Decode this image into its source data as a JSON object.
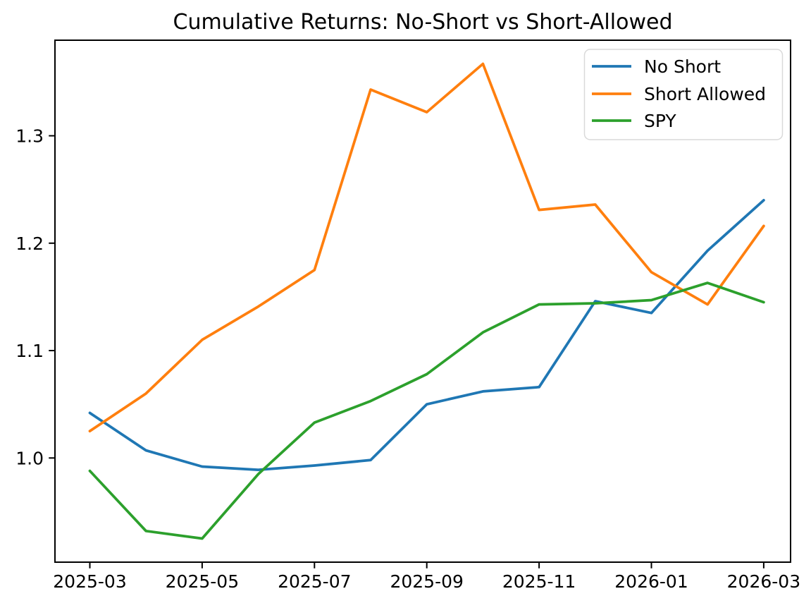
{
  "chart_data": {
    "type": "line",
    "title": "Cumulative Returns: No-Short vs Short-Allowed",
    "xlabel": "",
    "ylabel": "",
    "grid": false,
    "x": [
      "2025-03",
      "2025-04",
      "2025-05",
      "2025-06",
      "2025-07",
      "2025-08",
      "2025-09",
      "2025-10",
      "2025-11",
      "2025-12",
      "2026-01",
      "2026-02",
      "2026-03"
    ],
    "series": [
      {
        "name": "No Short",
        "color": "#1f77b4",
        "values": [
          1.042,
          1.007,
          0.992,
          0.989,
          0.993,
          0.998,
          1.05,
          1.062,
          1.066,
          1.146,
          1.135,
          1.193,
          1.24
        ]
      },
      {
        "name": "Short Allowed",
        "color": "#ff7f0e",
        "values": [
          1.025,
          1.06,
          1.11,
          1.141,
          1.175,
          1.343,
          1.322,
          1.367,
          1.231,
          1.236,
          1.173,
          1.143,
          1.216
        ]
      },
      {
        "name": "SPY",
        "color": "#2ca02c",
        "values": [
          0.988,
          0.932,
          0.925,
          0.985,
          1.033,
          1.053,
          1.078,
          1.117,
          1.143,
          1.144,
          1.147,
          1.163,
          1.145
        ]
      }
    ],
    "xticks": [
      "2025-03",
      "2025-05",
      "2025-07",
      "2025-09",
      "2025-11",
      "2026-01",
      "2026-03"
    ],
    "yticks": [
      "1.0",
      "1.1",
      "1.2",
      "1.3"
    ],
    "ylim": [
      0.903,
      1.389
    ],
    "legend": {
      "position": "upper right",
      "entries": [
        "No Short",
        "Short Allowed",
        "SPY"
      ]
    },
    "axis_color": "#000000",
    "background_color": "#ffffff"
  }
}
